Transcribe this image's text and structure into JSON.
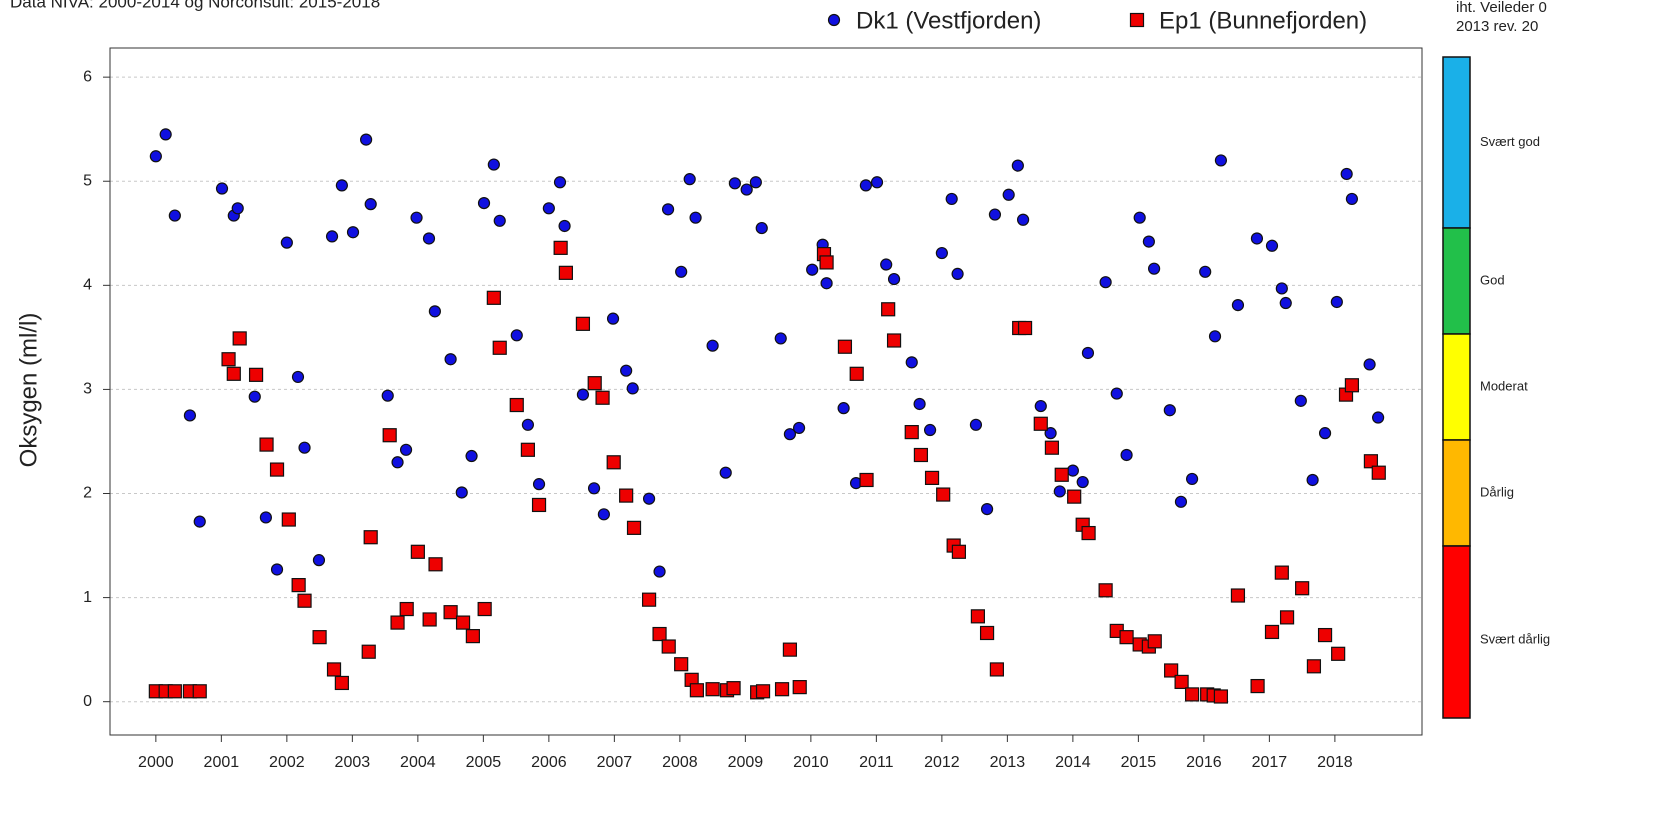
{
  "header": {
    "source": "Data NIVA: 2000-2014 og Norconsult: 2015-2018",
    "note_line1": "iht. Veileder 0",
    "note_line2": "2013 rev. 20"
  },
  "status_classes": [
    {
      "label": "Svært god",
      "color": "#1ab0e8"
    },
    {
      "label": "God",
      "color": "#22c04a"
    },
    {
      "label": "Moderat",
      "color": "#ffff00"
    },
    {
      "label": "Dårlig",
      "color": "#ffb800"
    },
    {
      "label": "Svært dårlig",
      "color": "#ff0000"
    }
  ],
  "chart_data": {
    "type": "scatter",
    "y_label": "Oksygen (ml/l)",
    "xlim": [
      1999.3,
      2019.33
    ],
    "ylim": [
      -0.32,
      6.28
    ],
    "xticks": [
      2000,
      2001,
      2002,
      2003,
      2004,
      2005,
      2006,
      2007,
      2008,
      2009,
      2010,
      2011,
      2012,
      2013,
      2014,
      2015,
      2016,
      2017,
      2018
    ],
    "yticks": [
      0,
      1,
      2,
      3,
      4,
      5,
      6
    ],
    "grid": true,
    "legend": "top",
    "series": [
      {
        "name": "Dk1 (Vestfjorden)",
        "color": "#1010e0",
        "marker": "circle",
        "x": [
          2000.0,
          2000.15,
          2000.29,
          2000.52,
          2000.67,
          2001.01,
          2001.19,
          2001.25,
          2001.51,
          2001.68,
          2001.85,
          2002.0,
          2002.17,
          2002.27,
          2002.49,
          2002.69,
          2002.84,
          2003.01,
          2003.21,
          2003.28,
          2003.54,
          2003.69,
          2003.82,
          2003.98,
          2004.17,
          2004.26,
          2004.5,
          2004.67,
          2004.82,
          2005.01,
          2005.16,
          2005.25,
          2005.51,
          2005.68,
          2005.85,
          2006.0,
          2006.17,
          2006.24,
          2006.52,
          2006.69,
          2006.84,
          2006.98,
          2007.18,
          2007.28,
          2007.53,
          2007.69,
          2007.82,
          2008.02,
          2008.15,
          2008.24,
          2008.5,
          2008.7,
          2008.84,
          2009.02,
          2009.16,
          2009.25,
          2009.54,
          2009.68,
          2009.82,
          2010.02,
          2010.18,
          2010.24,
          2010.5,
          2010.69,
          2010.84,
          2011.01,
          2011.15,
          2011.27,
          2011.54,
          2011.66,
          2011.82,
          2012.0,
          2012.15,
          2012.24,
          2012.52,
          2012.69,
          2012.81,
          2013.02,
          2013.16,
          2013.24,
          2013.51,
          2013.66,
          2013.8,
          2014.0,
          2014.15,
          2014.23,
          2014.5,
          2014.67,
          2014.82,
          2015.02,
          2015.16,
          2015.24,
          2015.48,
          2015.65,
          2015.82,
          2016.02,
          2016.17,
          2016.26,
          2016.52,
          2016.81,
          2017.04,
          2017.19,
          2017.25,
          2017.48,
          2017.66,
          2017.85,
          2018.03,
          2018.18,
          2018.26,
          2018.53,
          2018.66
        ],
        "values": [
          5.24,
          5.45,
          4.67,
          2.75,
          1.73,
          4.93,
          4.67,
          4.74,
          2.93,
          1.77,
          1.27,
          4.41,
          3.12,
          2.44,
          1.36,
          4.47,
          4.96,
          4.51,
          5.4,
          4.78,
          2.94,
          2.3,
          2.42,
          4.65,
          4.45,
          3.75,
          3.29,
          2.01,
          2.36,
          4.79,
          5.16,
          4.62,
          3.52,
          2.66,
          2.09,
          4.74,
          4.99,
          4.57,
          2.95,
          2.05,
          1.8,
          3.68,
          3.18,
          3.01,
          1.95,
          1.25,
          4.73,
          4.13,
          5.02,
          4.65,
          3.42,
          2.2,
          4.98,
          4.92,
          4.99,
          4.55,
          3.49,
          2.57,
          2.63,
          4.15,
          4.39,
          4.02,
          2.82,
          2.1,
          4.96,
          4.99,
          4.2,
          4.06,
          3.26,
          2.86,
          2.61,
          4.31,
          4.83,
          4.11,
          2.66,
          1.85,
          4.68,
          4.87,
          5.15,
          4.63,
          2.84,
          2.58,
          2.02,
          2.22,
          2.11,
          3.35,
          4.03,
          2.96,
          2.37,
          4.65,
          4.42,
          4.16,
          2.8,
          1.92,
          2.14,
          4.13,
          3.51,
          5.2,
          3.81,
          4.45,
          4.38,
          3.97,
          3.83,
          2.89,
          2.13,
          2.58,
          3.84,
          5.07,
          4.83,
          3.24,
          2.73
        ]
      },
      {
        "name": "Ep1 (Bunnefjorden)",
        "color": "#ee0000",
        "marker": "square",
        "x": [
          2000.0,
          2000.15,
          2000.29,
          2000.52,
          2000.67,
          2001.11,
          2001.19,
          2001.28,
          2001.53,
          2001.69,
          2001.85,
          2002.03,
          2002.18,
          2002.27,
          2002.5,
          2002.72,
          2002.84,
          2003.25,
          2003.28,
          2003.57,
          2003.69,
          2003.83,
          2004.0,
          2004.18,
          2004.27,
          2004.5,
          2004.69,
          2004.84,
          2005.02,
          2005.16,
          2005.25,
          2005.51,
          2005.68,
          2005.85,
          2006.18,
          2006.26,
          2006.52,
          2006.7,
          2006.82,
          2006.99,
          2007.18,
          2007.3,
          2007.53,
          2007.69,
          2007.83,
          2008.02,
          2008.18,
          2008.26,
          2008.5,
          2008.72,
          2008.82,
          2009.18,
          2009.27,
          2009.56,
          2009.68,
          2009.83,
          2010.2,
          2010.24,
          2010.52,
          2010.7,
          2010.85,
          2011.18,
          2011.27,
          2011.54,
          2011.68,
          2011.85,
          2012.02,
          2012.18,
          2012.26,
          2012.55,
          2012.69,
          2012.84,
          2013.18,
          2013.27,
          2013.51,
          2013.68,
          2013.83,
          2014.02,
          2014.15,
          2014.24,
          2014.5,
          2014.67,
          2014.82,
          2015.02,
          2015.16,
          2015.25,
          2015.5,
          2015.66,
          2015.82,
          2016.05,
          2016.15,
          2016.26,
          2016.52,
          2016.82,
          2017.04,
          2017.19,
          2017.27,
          2017.5,
          2017.68,
          2017.85,
          2018.05,
          2018.17,
          2018.26,
          2018.55,
          2018.67
        ],
        "values": [
          0.1,
          0.1,
          0.1,
          0.1,
          0.1,
          3.29,
          3.15,
          3.49,
          3.14,
          2.47,
          2.23,
          1.75,
          1.12,
          0.97,
          0.62,
          0.31,
          0.18,
          0.48,
          1.58,
          2.56,
          0.76,
          0.89,
          1.44,
          0.79,
          1.32,
          0.86,
          0.76,
          0.63,
          0.89,
          3.88,
          3.4,
          2.85,
          2.42,
          1.89,
          4.36,
          4.12,
          3.63,
          3.06,
          2.92,
          2.3,
          1.98,
          1.67,
          0.98,
          0.65,
          0.53,
          0.36,
          0.21,
          0.11,
          0.12,
          0.11,
          0.13,
          0.09,
          0.1,
          0.12,
          0.5,
          0.14,
          4.3,
          4.22,
          3.41,
          3.15,
          2.13,
          3.77,
          3.47,
          2.59,
          2.37,
          2.15,
          1.99,
          1.5,
          1.44,
          0.82,
          0.66,
          0.31,
          3.59,
          3.59,
          2.67,
          2.44,
          2.18,
          1.97,
          1.7,
          1.62,
          1.07,
          0.68,
          0.62,
          0.55,
          0.53,
          0.58,
          0.3,
          0.19,
          0.07,
          0.07,
          0.06,
          0.05,
          1.02,
          0.15,
          0.67,
          1.24,
          0.81,
          1.09,
          0.34,
          0.64,
          0.46,
          2.95,
          3.04,
          2.31,
          2.2
        ]
      }
    ]
  }
}
